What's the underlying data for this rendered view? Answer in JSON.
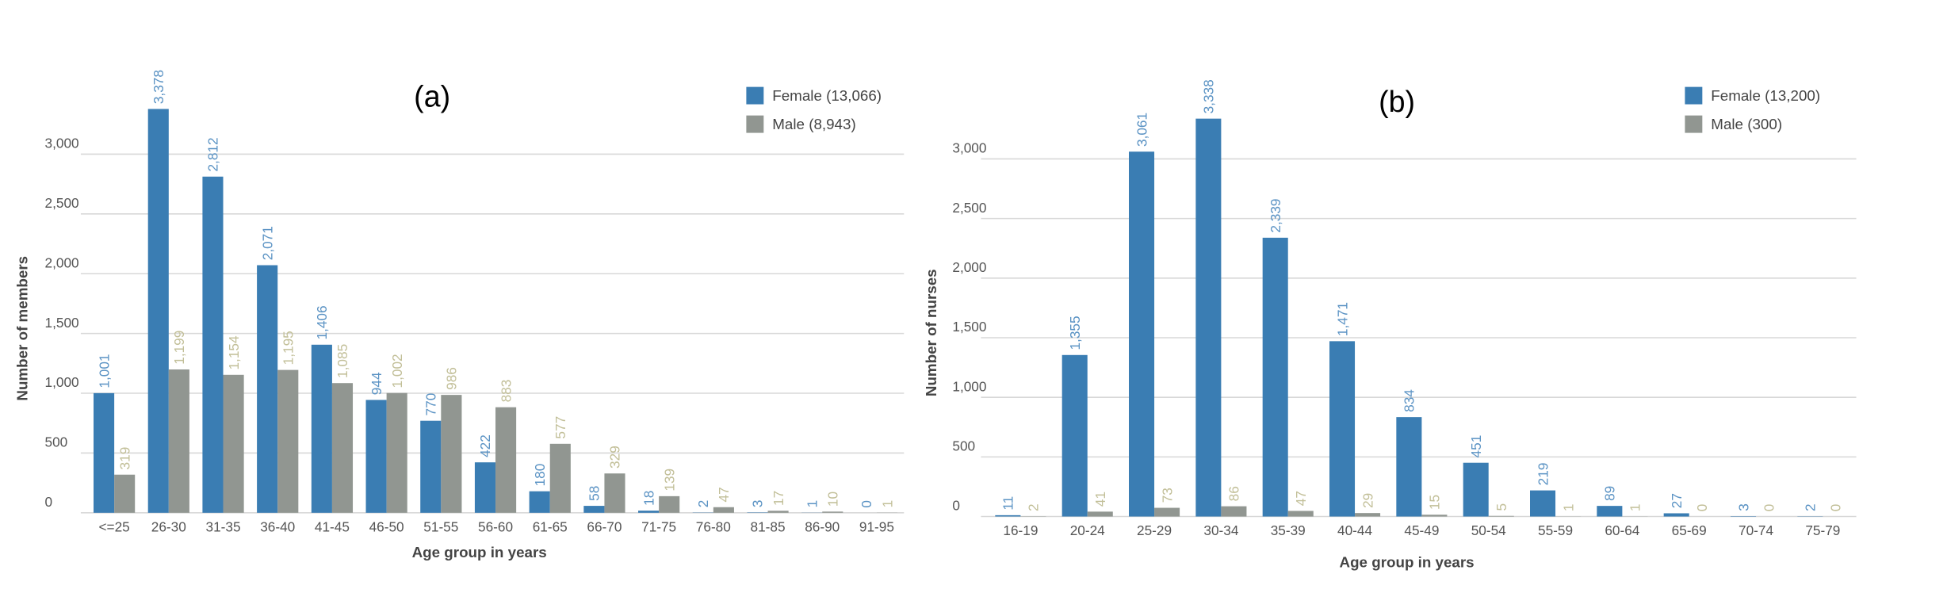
{
  "chart_data": [
    {
      "type": "bar",
      "annotation": "(a)",
      "ylabel": "Number of members",
      "xlabel": "Age group in years",
      "categories": [
        "<=25",
        "26-30",
        "31-35",
        "36-40",
        "41-45",
        "46-50",
        "51-55",
        "56-60",
        "61-65",
        "66-70",
        "71-75",
        "76-80",
        "81-85",
        "86-90",
        "91-95"
      ],
      "series": [
        {
          "name": "Female (13,066)",
          "color": "#3a7db3",
          "label_color": "#5b93c4",
          "values": [
            1001,
            3378,
            2812,
            2071,
            1406,
            944,
            770,
            422,
            180,
            58,
            18,
            2,
            3,
            1,
            0
          ],
          "value_labels": [
            "1,001",
            "3,378",
            "2,812",
            "2,071",
            "1,406",
            "944",
            "770",
            "422",
            "180",
            "58",
            "18",
            "2",
            "3",
            "1",
            "0"
          ]
        },
        {
          "name": "Male (8,943)",
          "color": "#919691",
          "label_color": "#c2bf98",
          "values": [
            319,
            1199,
            1154,
            1195,
            1085,
            1002,
            986,
            883,
            577,
            329,
            139,
            47,
            17,
            10,
            1
          ],
          "value_labels": [
            "319",
            "1,199",
            "1,154",
            "1,195",
            "1,085",
            "1,002",
            "986",
            "883",
            "577",
            "329",
            "139",
            "47",
            "17",
            "10",
            "1"
          ]
        }
      ],
      "ylim": [
        0,
        3500
      ],
      "yticks": [
        0,
        500,
        {
          "value": 1000,
          "label": "1,000"
        },
        {
          "value": 1500,
          "label": "1,500"
        },
        {
          "value": 2000,
          "label": "2,000"
        },
        {
          "value": 2500,
          "label": "2,500"
        },
        {
          "value": 3000,
          "label": "3,000"
        }
      ],
      "grid": true,
      "legend": "upper right"
    },
    {
      "type": "bar",
      "annotation": "(b)",
      "ylabel": "Number of nurses",
      "xlabel": "Age group in years",
      "categories": [
        "16-19",
        "20-24",
        "25-29",
        "30-34",
        "35-39",
        "40-44",
        "45-49",
        "50-54",
        "55-59",
        "60-64",
        "65-69",
        "70-74",
        "75-79"
      ],
      "series": [
        {
          "name": "Female (13,200)",
          "color": "#3a7db3",
          "label_color": "#5b93c4",
          "values": [
            11,
            1355,
            3061,
            3338,
            2339,
            1471,
            834,
            451,
            219,
            89,
            27,
            3,
            2
          ],
          "value_labels": [
            "11",
            "1,355",
            "3,061",
            "3,338",
            "2,339",
            "1,471",
            "834",
            "451",
            "219",
            "89",
            "27",
            "3",
            "2"
          ]
        },
        {
          "name": "Male (300)",
          "color": "#919691",
          "label_color": "#c2bf98",
          "values": [
            2,
            41,
            73,
            86,
            47,
            29,
            15,
            5,
            1,
            1,
            0,
            0,
            0
          ],
          "value_labels": [
            "2",
            "41",
            "73",
            "86",
            "47",
            "29",
            "15",
            "5",
            "1",
            "1",
            "0",
            "0",
            "0"
          ]
        }
      ],
      "ylim": [
        0,
        3500
      ],
      "yticks": [
        0,
        500,
        {
          "value": 1000,
          "label": "1,000"
        },
        {
          "value": 1500,
          "label": "1,500"
        },
        {
          "value": 2000,
          "label": "2,000"
        },
        {
          "value": 2500,
          "label": "2,500"
        },
        {
          "value": 3000,
          "label": "3,000"
        }
      ],
      "grid": true,
      "legend": "upper right"
    }
  ]
}
